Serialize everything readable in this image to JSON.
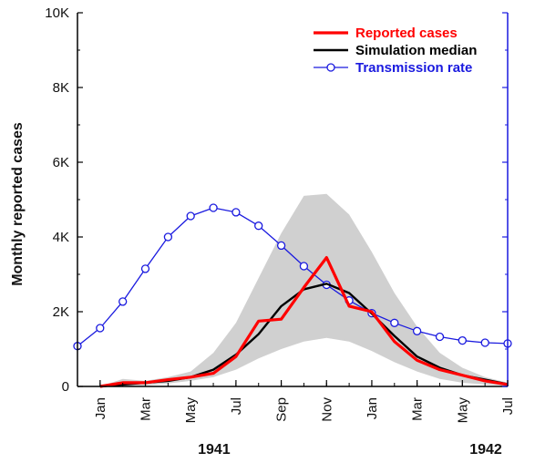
{
  "chart_data": {
    "type": "line",
    "ylabel": "Monthly reported cases",
    "ylim": [
      0,
      10000
    ],
    "y_ticks": [
      0,
      2000,
      4000,
      6000,
      8000,
      10000
    ],
    "y_tick_labels": [
      "0",
      "2K",
      "4K",
      "6K",
      "8K",
      "10K"
    ],
    "x_ticks": [
      "1941-01",
      "1941-03",
      "1941-05",
      "1941-07",
      "1941-09",
      "1941-11",
      "1942-01",
      "1942-03",
      "1942-05",
      "1942-07"
    ],
    "x_tick_labels": [
      "Jan",
      "Mar",
      "May",
      "Jul",
      "Sep",
      "Nov",
      "Jan",
      "Mar",
      "May",
      "Jul"
    ],
    "x_range": [
      "1940-12",
      "1942-07"
    ],
    "years": [
      {
        "label": "1941",
        "at": "1941-07"
      },
      {
        "label": "1942",
        "at": "1942-07"
      }
    ],
    "legend_position": "top-right",
    "colors": {
      "reported": "#ff0000",
      "median": "#000000",
      "transmission": "#1a1adf",
      "band": "#d0d0d0"
    },
    "series": [
      {
        "name": "Reported cases",
        "style": "thick-line",
        "x": [
          "1941-01",
          "1941-02",
          "1941-03",
          "1941-04",
          "1941-05",
          "1941-06",
          "1941-07",
          "1941-08",
          "1941-09",
          "1941-10",
          "1941-11",
          "1941-12",
          "1942-01",
          "1942-02",
          "1942-03",
          "1942-04",
          "1942-05",
          "1942-06",
          "1942-07"
        ],
        "values": [
          0,
          100,
          100,
          180,
          250,
          350,
          800,
          1750,
          1800,
          2650,
          3450,
          2150,
          2000,
          1200,
          700,
          450,
          300,
          150,
          50
        ]
      },
      {
        "name": "Simulation median",
        "style": "line",
        "x": [
          "1941-01",
          "1941-02",
          "1941-03",
          "1941-04",
          "1941-05",
          "1941-06",
          "1941-07",
          "1941-08",
          "1941-09",
          "1941-10",
          "1941-11",
          "1941-12",
          "1942-01",
          "1942-02",
          "1942-03",
          "1942-04",
          "1942-05",
          "1942-06",
          "1942-07"
        ],
        "values": [
          0,
          50,
          100,
          150,
          250,
          450,
          850,
          1400,
          2150,
          2600,
          2750,
          2500,
          1950,
          1350,
          800,
          500,
          300,
          180,
          60
        ]
      },
      {
        "name": "Transmission rate",
        "style": "line-circles",
        "x": [
          "1940-12",
          "1941-01",
          "1941-02",
          "1941-03",
          "1941-04",
          "1941-05",
          "1941-06",
          "1941-07",
          "1941-08",
          "1941-09",
          "1941-10",
          "1941-11",
          "1941-12",
          "1942-01",
          "1942-02",
          "1942-03",
          "1942-04",
          "1942-05",
          "1942-06",
          "1942-07"
        ],
        "values": [
          1080,
          1560,
          2270,
          3150,
          4000,
          4560,
          4780,
          4660,
          4300,
          3770,
          3220,
          2720,
          2300,
          1960,
          1700,
          1480,
          1330,
          1230,
          1170,
          1150
        ]
      }
    ],
    "band": {
      "x": [
        "1941-01",
        "1941-02",
        "1941-03",
        "1941-04",
        "1941-05",
        "1941-06",
        "1941-07",
        "1941-08",
        "1941-09",
        "1941-10",
        "1941-11",
        "1941-12",
        "1942-01",
        "1942-02",
        "1942-03",
        "1942-04",
        "1942-05",
        "1942-06",
        "1942-07"
      ],
      "upper": [
        0,
        200,
        150,
        250,
        400,
        900,
        1700,
        2900,
        4100,
        5100,
        5150,
        4600,
        3600,
        2500,
        1600,
        900,
        500,
        250,
        100
      ],
      "lower": [
        0,
        0,
        30,
        80,
        150,
        250,
        450,
        750,
        1000,
        1200,
        1300,
        1200,
        950,
        650,
        400,
        200,
        100,
        50,
        20
      ]
    }
  }
}
